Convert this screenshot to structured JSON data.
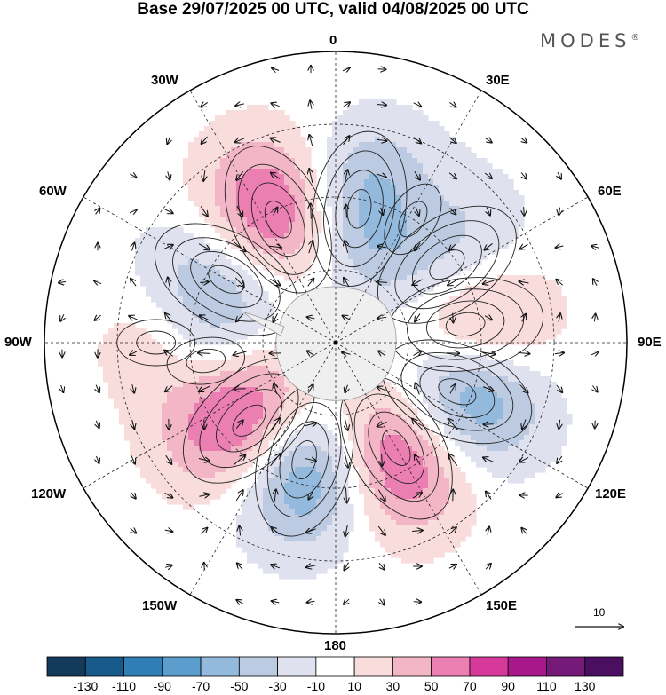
{
  "title": "Base 29/07/2025 00 UTC, valid 04/08/2025 00 UTC",
  "brand": "MODES",
  "brand_mark": "®",
  "longitude_labels": {
    "lon_0": "0",
    "lon_30e": "30E",
    "lon_60e": "60E",
    "lon_90e": "90E",
    "lon_120e": "120E",
    "lon_150e": "150E",
    "lon_180": "180",
    "lon_150w": "150W",
    "lon_120w": "120W",
    "lon_90w": "90W",
    "lon_60w": "60W",
    "lon_30w": "30W"
  },
  "reference_vector": {
    "label": "10",
    "magnitude": 10
  },
  "colorbar": {
    "levels": [
      "-130",
      "-110",
      "-90",
      "-70",
      "-50",
      "-30",
      "-10",
      "10",
      "30",
      "50",
      "70",
      "90",
      "110",
      "130"
    ],
    "colors": [
      "#133a5a",
      "#175a8a",
      "#2f7fb6",
      "#5b9dcc",
      "#93b9dd",
      "#bccbe2",
      "#dfe1ef",
      "#ffffff",
      "#f9dddd",
      "#f3b6c7",
      "#ec7fb2",
      "#d6399a",
      "#a8188a",
      "#751a78",
      "#4a0f60"
    ]
  },
  "anomaly_centers": [
    {
      "lon_deg": 10,
      "colat_deg": 28,
      "value": -95
    },
    {
      "lon_deg": 335,
      "colat_deg": 28,
      "value": 120
    },
    {
      "lon_deg": 32,
      "colat_deg": 30,
      "value": 40
    },
    {
      "lon_deg": 55,
      "colat_deg": 28,
      "value": -80
    },
    {
      "lon_deg": 82,
      "colat_deg": 27,
      "value": 125
    },
    {
      "lon_deg": 112,
      "colat_deg": 27,
      "value": -140
    },
    {
      "lon_deg": 150,
      "colat_deg": 25,
      "value": 128
    },
    {
      "lon_deg": 195,
      "colat_deg": 25,
      "value": -135
    },
    {
      "lon_deg": 228,
      "colat_deg": 24,
      "value": 128
    },
    {
      "lon_deg": 300,
      "colat_deg": 26,
      "value": -75
    },
    {
      "lon_deg": 270,
      "colat_deg": 37,
      "value": 30
    },
    {
      "lon_deg": 262,
      "colat_deg": 27,
      "value": -30
    }
  ]
}
